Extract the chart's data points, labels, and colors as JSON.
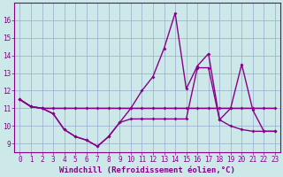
{
  "xlabel": "Windchill (Refroidissement éolien,°C)",
  "x_values": [
    0,
    1,
    2,
    3,
    4,
    5,
    6,
    7,
    8,
    9,
    10,
    11,
    12,
    13,
    14,
    15,
    16,
    17,
    18,
    19,
    20,
    21,
    22,
    23
  ],
  "line_flat": [
    11.5,
    11.1,
    11.0,
    11.0,
    11.0,
    11.0,
    11.0,
    11.0,
    11.0,
    11.0,
    11.0,
    11.0,
    11.0,
    11.0,
    11.0,
    11.0,
    11.0,
    11.0,
    11.0,
    11.0,
    11.0,
    11.0,
    11.0,
    11.0
  ],
  "line_spiky": [
    11.5,
    11.1,
    11.0,
    10.7,
    9.8,
    9.4,
    9.2,
    8.85,
    9.4,
    10.2,
    11.0,
    12.0,
    12.8,
    14.4,
    16.4,
    12.1,
    13.4,
    14.1,
    10.35,
    11.0,
    13.5,
    10.9,
    9.7,
    9.7
  ],
  "line_smooth": [
    11.5,
    11.1,
    11.0,
    10.7,
    9.8,
    9.4,
    9.2,
    8.85,
    9.4,
    10.2,
    10.4,
    10.4,
    10.4,
    10.4,
    10.4,
    10.4,
    13.3,
    13.3,
    10.35,
    10.0,
    9.8,
    9.7,
    9.7,
    9.7
  ],
  "bg_color": "#cce8e8",
  "line_color": "#880088",
  "grid_color": "#99aacc",
  "ylim": [
    8.5,
    17.0
  ],
  "yticks": [
    9,
    10,
    11,
    12,
    13,
    14,
    15,
    16
  ],
  "xticks": [
    0,
    1,
    2,
    3,
    4,
    5,
    6,
    7,
    8,
    9,
    10,
    11,
    12,
    13,
    14,
    15,
    16,
    17,
    18,
    19,
    20,
    21,
    22,
    23
  ],
  "tick_fontsize": 5.5,
  "label_fontsize": 6.5,
  "marker": "D",
  "marker_size": 2.0
}
